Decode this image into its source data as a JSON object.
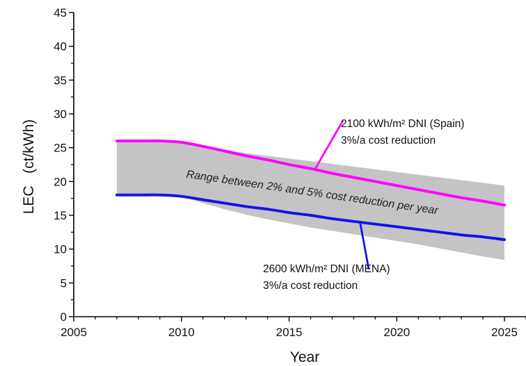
{
  "chart_data": {
    "type": "area",
    "xlabel": "Year",
    "ylabel": "LEC   (ct/kWh)",
    "xlim": [
      2005,
      2026
    ],
    "ylim": [
      0,
      45
    ],
    "x_ticks": [
      2005,
      2010,
      2015,
      2020,
      2025
    ],
    "y_ticks": [
      0,
      5,
      10,
      15,
      20,
      25,
      30,
      35,
      40,
      45
    ],
    "grid": false,
    "band": {
      "label": "Range between 2% and 5% cost reduction per year",
      "color": "#c4c4c4",
      "x": [
        2007,
        2008,
        2009,
        2010,
        2011,
        2012,
        2013,
        2014,
        2015,
        2016,
        2017,
        2018,
        2019,
        2020,
        2021,
        2022,
        2023,
        2024,
        2025
      ],
      "upper": [
        26.0,
        26.0,
        26.0,
        25.8,
        25.2,
        24.7,
        24.2,
        23.8,
        23.4,
        23.0,
        22.6,
        22.2,
        21.8,
        21.4,
        21.0,
        20.6,
        20.2,
        19.8,
        19.4
      ],
      "lower": [
        18.0,
        18.0,
        18.0,
        17.8,
        16.8,
        15.9,
        15.1,
        14.4,
        13.8,
        13.2,
        12.7,
        12.2,
        11.7,
        11.2,
        10.7,
        10.1,
        9.5,
        8.9,
        8.4
      ]
    },
    "series": [
      {
        "color": "#ff00ff",
        "x": [
          2007,
          2008,
          2009,
          2010,
          2011,
          2012,
          2013,
          2014,
          2015,
          2016,
          2017,
          2018,
          2019,
          2020,
          2021,
          2022,
          2023,
          2024,
          2025
        ],
        "values": [
          26.0,
          26.0,
          26.0,
          25.8,
          25.2,
          24.5,
          23.8,
          23.2,
          22.5,
          21.9,
          21.2,
          20.6,
          20.0,
          19.4,
          18.8,
          18.2,
          17.6,
          17.1,
          16.5
        ]
      },
      {
        "color": "#1414e6",
        "x": [
          2007,
          2008,
          2009,
          2010,
          2011,
          2012,
          2013,
          2014,
          2015,
          2016,
          2017,
          2018,
          2019,
          2020,
          2021,
          2022,
          2023,
          2024,
          2025
        ],
        "values": [
          18.0,
          18.0,
          18.0,
          17.8,
          17.3,
          16.8,
          16.3,
          15.9,
          15.4,
          15.0,
          14.5,
          14.1,
          13.7,
          13.3,
          12.9,
          12.5,
          12.1,
          11.8,
          11.4
        ]
      }
    ],
    "annotations": [
      {
        "line1": "2100 kWh/m² DNI (Spain)",
        "line2": "3%/a cost reduction",
        "color": "#ff00ff",
        "arrow_from": [
          2017.5,
          29.0
        ],
        "arrow_to": [
          2016.2,
          21.8
        ]
      },
      {
        "line1": "2600 kWh/m² DNI (MENA)",
        "line2": "3%/a cost reduction",
        "color": "#1414e6",
        "arrow_from": [
          2018.7,
          7.0
        ],
        "arrow_to": [
          2018.3,
          13.9
        ]
      }
    ]
  }
}
